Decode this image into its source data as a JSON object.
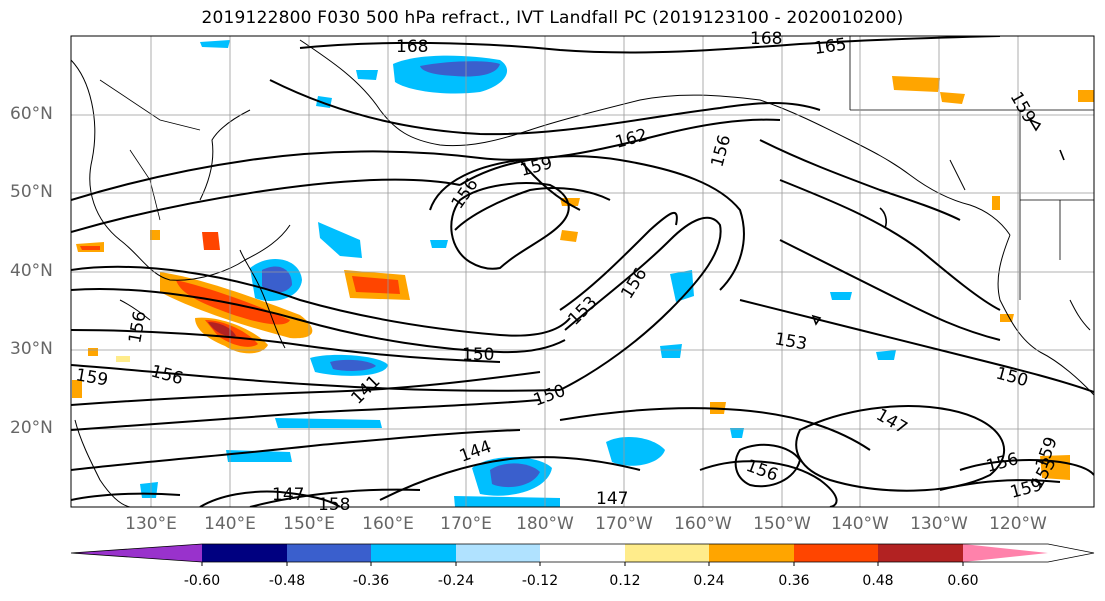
{
  "title": "2019122800 F030 500 hPa refract., IVT Landfall PC (2019123100 - 2020010200)",
  "lat_labels": [
    "60°N",
    "50°N",
    "40°N",
    "30°N",
    "20°N"
  ],
  "lon_labels": [
    "130°E",
    "140°E",
    "150°E",
    "160°E",
    "170°E",
    "180°W",
    "170°W",
    "160°W",
    "150°W",
    "140°W",
    "130°W",
    "120°W"
  ],
  "contour_labels": [
    "168",
    "168",
    "165",
    "162",
    "159",
    "159",
    "156",
    "156",
    "156",
    "156",
    "153",
    "153",
    "153",
    "150",
    "150",
    "150",
    "147",
    "147",
    "147",
    "144",
    "141",
    "159",
    "156",
    "156",
    "156",
    "158",
    "159",
    "159"
  ],
  "colorbar": {
    "tick_labels": [
      "-0.60",
      "-0.48",
      "-0.36",
      "-0.24",
      "-0.12",
      "0.12",
      "0.24",
      "0.36",
      "0.48",
      "0.60"
    ],
    "colors": [
      "#9932cc",
      "#000080",
      "#3a5fcd",
      "#00bfff",
      "#b0e2ff",
      "#ffffff",
      "#ffec8b",
      "#ffa500",
      "#ff4500",
      "#b22222",
      "#ff82ab"
    ]
  }
}
